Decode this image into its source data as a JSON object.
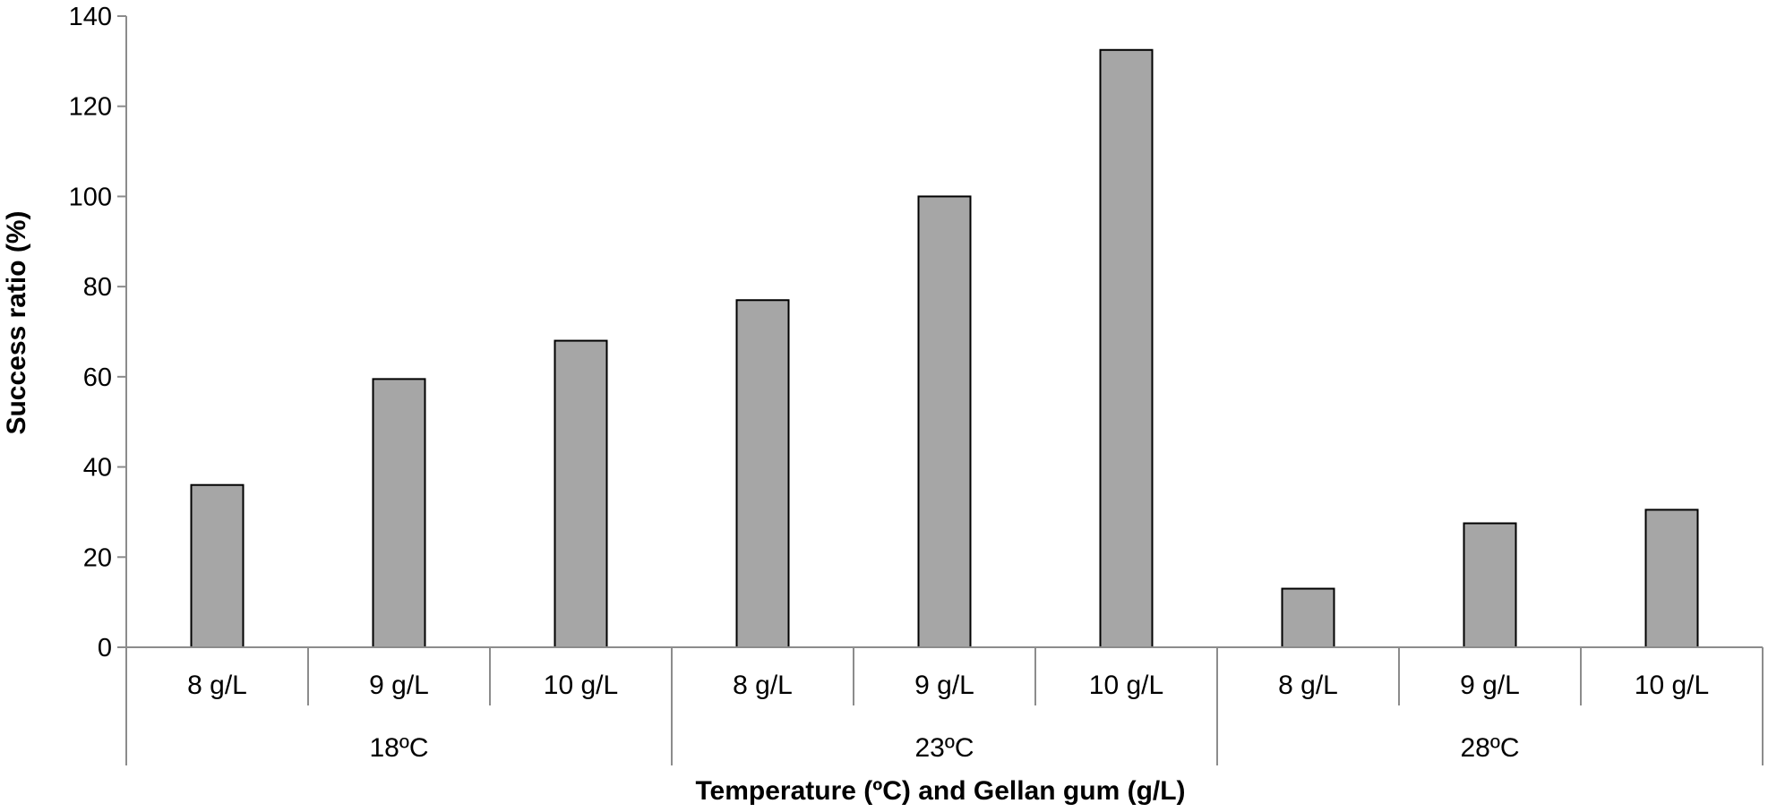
{
  "chart_data": {
    "type": "bar",
    "title": "",
    "xlabel": "Temperature (ºC) and Gellan gum (g/L)",
    "ylabel": "Success ratio (%)",
    "ylim": [
      0,
      140
    ],
    "yticks": [
      0,
      20,
      40,
      60,
      80,
      100,
      120,
      140
    ],
    "groups": [
      {
        "label": "18ºC",
        "categories": [
          "8 g/L",
          "9 g/L",
          "10 g/L"
        ]
      },
      {
        "label": "23ºC",
        "categories": [
          "8 g/L",
          "9 g/L",
          "10 g/L"
        ]
      },
      {
        "label": "28ºC",
        "categories": [
          "8 g/L",
          "9 g/L",
          "10 g/L"
        ]
      }
    ],
    "categories": [
      "8 g/L",
      "9 g/L",
      "10 g/L",
      "8 g/L",
      "9 g/L",
      "10 g/L",
      "8 g/L",
      "9 g/L",
      "10 g/L"
    ],
    "values": [
      36,
      59.5,
      68,
      77,
      100,
      132.5,
      13,
      27.5,
      30.5
    ],
    "bar_color": "#a6a6a6",
    "bar_edge_color": "#000000",
    "axis_color": "#8c8c8c",
    "grid": false,
    "legend": "none"
  }
}
